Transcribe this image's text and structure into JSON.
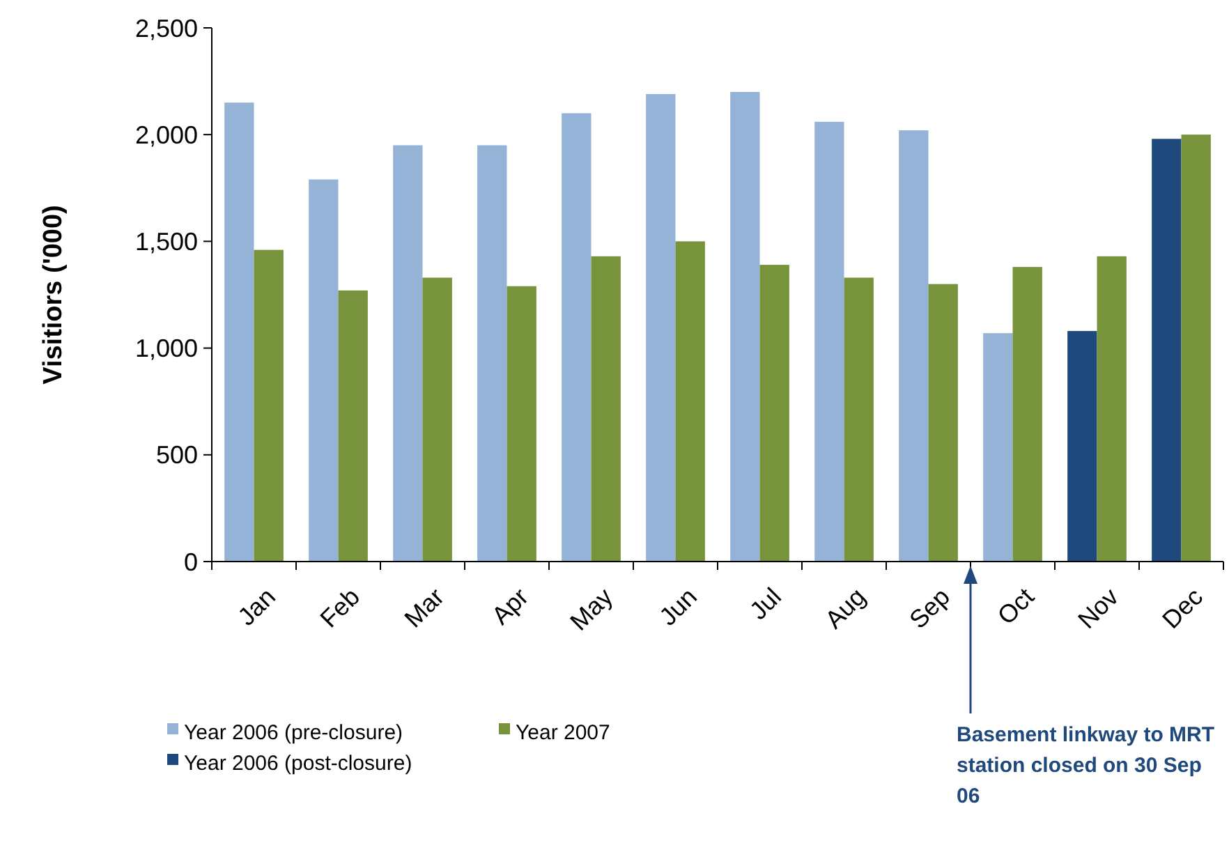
{
  "chart_data": {
    "type": "bar",
    "ylabel": "Visitiors ('000)",
    "categories": [
      "Jan",
      "Feb",
      "Mar",
      "Apr",
      "May",
      "Jun",
      "Jul",
      "Aug",
      "Sep",
      "Oct",
      "Nov",
      "Dec"
    ],
    "series": [
      {
        "name": "Year 2006 (pre-closure)",
        "color": "#95b3d7",
        "values": [
          2150,
          1790,
          1950,
          1950,
          2100,
          2190,
          2200,
          2060,
          2020,
          1070,
          null,
          null
        ]
      },
      {
        "name": "Year 2006 (post-closure)",
        "color": "#1f497d",
        "values": [
          null,
          null,
          null,
          null,
          null,
          null,
          null,
          null,
          null,
          null,
          1080,
          1980
        ]
      },
      {
        "name": "Year 2007",
        "color": "#77933c",
        "values": [
          1460,
          1270,
          1330,
          1290,
          1430,
          1500,
          1390,
          1330,
          1300,
          1380,
          1430,
          2000
        ]
      }
    ],
    "ylim": [
      0,
      2500
    ],
    "yticks": [
      {
        "value": 0,
        "label": "0"
      },
      {
        "value": 500,
        "label": "500"
      },
      {
        "value": 1000,
        "label": "1,000"
      },
      {
        "value": 1500,
        "label": "1,500"
      },
      {
        "value": 2000,
        "label": "2,000"
      },
      {
        "value": 2500,
        "label": "2,500"
      }
    ],
    "grid": false,
    "legend": "bottom left",
    "annotations": [
      "Basement linkway to MRT station closed on 30 Sep 06"
    ]
  }
}
